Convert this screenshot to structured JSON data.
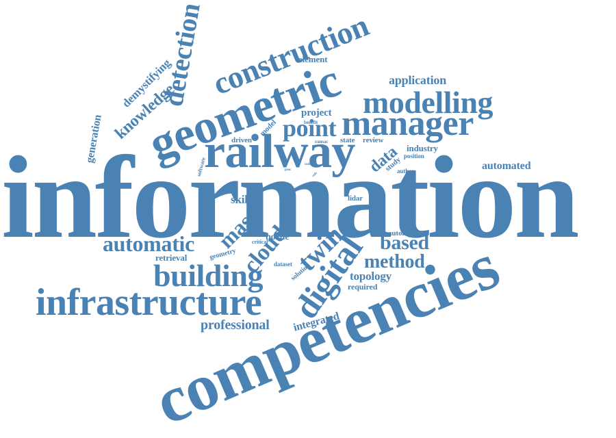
{
  "color": "#4a82b4",
  "words": [
    "information",
    "competencies",
    "geometric",
    "railway",
    "infrastructure",
    "construction",
    "manager",
    "modelling",
    "building",
    "detection",
    "point",
    "digital",
    "automatic",
    "twin",
    "cloud",
    "method",
    "based",
    "mast",
    "knowledge",
    "demystifying",
    "generation",
    "professional",
    "data",
    "topology",
    "automated",
    "application",
    "element",
    "project",
    "industry",
    "integrated",
    "required",
    "retrieval",
    "borne",
    "skill",
    "role",
    "rail",
    "lidar",
    "state",
    "review",
    "driven",
    "model",
    "study",
    "automate",
    "geometry",
    "solution",
    "dataset",
    "critical",
    "result",
    "time",
    "task",
    "need",
    "position",
    "author",
    "software",
    "ransac",
    "benefit",
    "track",
    "cost",
    "rule",
    "proc",
    "code"
  ]
}
